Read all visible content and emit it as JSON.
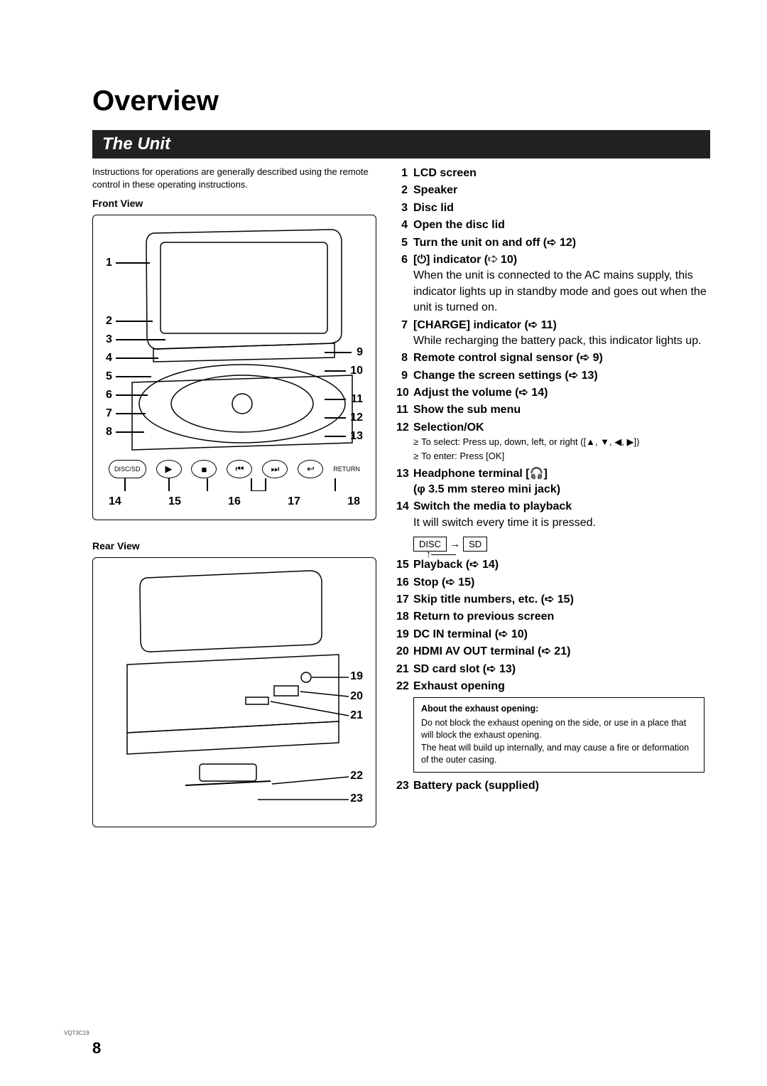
{
  "doc_code": "VQT3C19",
  "page_number": "8",
  "heading": "Overview",
  "section_title": "The Unit",
  "intro": "Instructions for operations are generally described using the remote control in these operating instructions.",
  "front_view_label": "Front View",
  "rear_view_label": "Rear View",
  "front_left_nums": [
    "1",
    "2",
    "3",
    "4",
    "5",
    "6",
    "7",
    "8"
  ],
  "front_right_nums": [
    "9",
    "10",
    "11",
    "12",
    "13"
  ],
  "front_bottom_nums": [
    "14",
    "15",
    "16",
    "17",
    "18"
  ],
  "front_buttons": {
    "disc_sd": "DISC/SD",
    "return": "RETURN"
  },
  "rear_right_nums": [
    "19",
    "20",
    "21",
    "22",
    "23"
  ],
  "parts": [
    {
      "n": "1",
      "title": "LCD screen"
    },
    {
      "n": "2",
      "title": "Speaker"
    },
    {
      "n": "3",
      "title": "Disc lid"
    },
    {
      "n": "4",
      "title": "Open the disc lid"
    },
    {
      "n": "5",
      "title": "Turn the unit on and off (➪ 12)"
    },
    {
      "n": "6",
      "title": "[⏻] indicator (➪ 10)",
      "desc": "When the unit is connected to the AC mains supply, this indicator lights up in standby mode and goes out when the unit is turned on."
    },
    {
      "n": "7",
      "title": "[CHARGE] indicator (➪ 11)",
      "desc": "While recharging the battery pack, this indicator lights up."
    },
    {
      "n": "8",
      "title": "Remote control signal sensor (➪ 9)"
    },
    {
      "n": "9",
      "title": "Change the screen settings (➪ 13)"
    },
    {
      "n": "10",
      "title": "Adjust the volume (➪ 14)"
    },
    {
      "n": "11",
      "title": "Show the sub menu"
    },
    {
      "n": "12",
      "title": "Selection/OK",
      "subs": [
        "To select: Press up, down, left, or right ([▲, ▼, ◀, ▶])",
        "To enter: Press [OK]"
      ]
    },
    {
      "n": "13",
      "title": "Headphone terminal [🎧]",
      "title2": "(φ 3.5 mm stereo mini jack)"
    },
    {
      "n": "14",
      "title": "Switch the media to playback",
      "desc": "It will switch every time it is pressed.",
      "mediabox": true
    },
    {
      "n": "15",
      "title": "Playback (➪ 14)"
    },
    {
      "n": "16",
      "title": "Stop (➪ 15)"
    },
    {
      "n": "17",
      "title": "Skip title numbers, etc. (➪ 15)"
    },
    {
      "n": "18",
      "title": "Return to previous screen"
    },
    {
      "n": "19",
      "title": "DC IN terminal (➪ 10)"
    },
    {
      "n": "20",
      "title": "HDMI AV OUT terminal (➪ 21)"
    },
    {
      "n": "21",
      "title": "SD card slot (➪ 13)"
    },
    {
      "n": "22",
      "title": "Exhaust opening",
      "infobox": {
        "title": "About the exhaust opening:",
        "body": "Do not block the exhaust opening on the side, or use in a place that will block the exhaust opening.\nThe heat will build up internally, and may cause a fire or deformation of the outer casing."
      }
    },
    {
      "n": "23",
      "title": "Battery pack (supplied)"
    }
  ],
  "mediabox": {
    "left": "DISC",
    "right": "SD"
  }
}
